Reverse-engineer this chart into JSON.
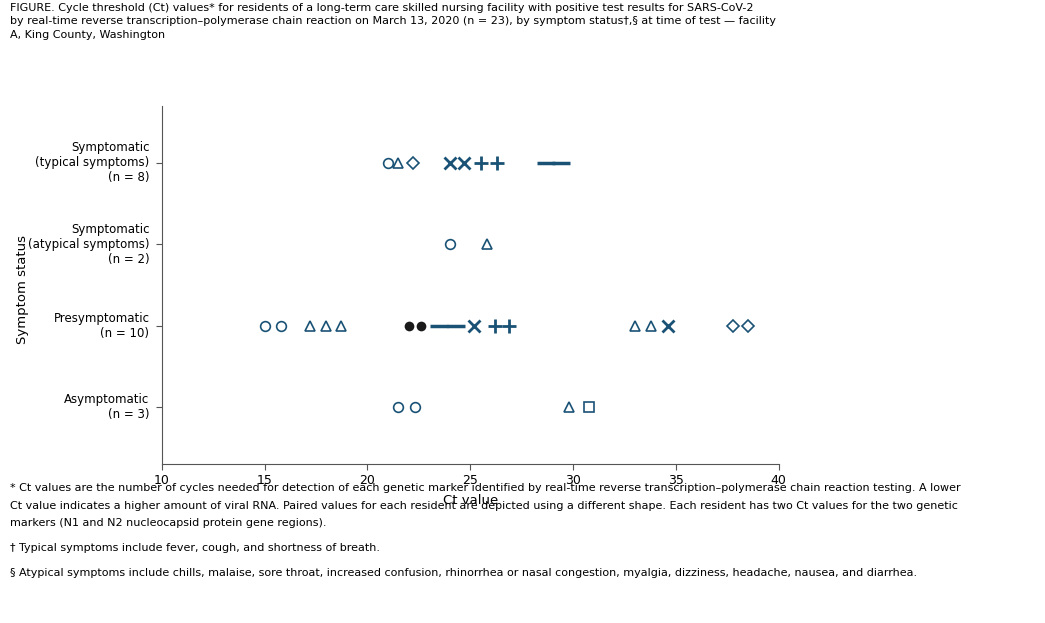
{
  "title_lines": [
    "FIGURE. Cycle threshold (Ct) values* for residents of a long-term care skilled nursing facility with positive test results for SARS-CoV-2",
    "by real-time reverse transcription–polymerase chain reaction on March 13, 2020 (n = 23), by symptom status†,§ at time of test — facility",
    "A, King County, Washington"
  ],
  "xlabel": "Ct value",
  "ylabel": "Symptom status",
  "xlim": [
    10,
    40
  ],
  "ylim": [
    -0.7,
    3.7
  ],
  "ytick_labels": [
    "Asymptomatic\n(n = 3)",
    "Presymptomatic\n(n = 10)",
    "Symptomatic\n(atypical symptoms)\n(n = 2)",
    "Symptomatic\n(typical symptoms)\n(n = 8)"
  ],
  "marker_color": "#1a5276",
  "marker_color_dark": "#1a1a1a",
  "points": [
    {
      "row": 3,
      "x": 21.0,
      "marker": "o",
      "filled": false,
      "ms": 7,
      "mew": 1.2
    },
    {
      "row": 3,
      "x": 21.5,
      "marker": "^",
      "filled": false,
      "ms": 7,
      "mew": 1.2
    },
    {
      "row": 3,
      "x": 22.2,
      "marker": "D",
      "filled": false,
      "ms": 6,
      "mew": 1.2
    },
    {
      "row": 3,
      "x": 24.0,
      "marker": "x",
      "filled": false,
      "ms": 9,
      "mew": 2.0
    },
    {
      "row": 3,
      "x": 24.7,
      "marker": "x",
      "filled": false,
      "ms": 9,
      "mew": 2.0
    },
    {
      "row": 3,
      "x": 25.5,
      "marker": "+",
      "filled": false,
      "ms": 10,
      "mew": 2.0
    },
    {
      "row": 3,
      "x": 26.3,
      "marker": "+",
      "filled": false,
      "ms": 10,
      "mew": 2.0
    },
    {
      "row": 3,
      "x": 28.7,
      "marker": "_",
      "filled": false,
      "ms": 13,
      "mew": 2.5
    },
    {
      "row": 3,
      "x": 29.4,
      "marker": "_",
      "filled": false,
      "ms": 13,
      "mew": 2.5
    },
    {
      "row": 2,
      "x": 24.0,
      "marker": "o",
      "filled": false,
      "ms": 7,
      "mew": 1.2
    },
    {
      "row": 2,
      "x": 25.8,
      "marker": "^",
      "filled": false,
      "ms": 7,
      "mew": 1.2
    },
    {
      "row": 1,
      "x": 15.0,
      "marker": "o",
      "filled": false,
      "ms": 7,
      "mew": 1.2
    },
    {
      "row": 1,
      "x": 15.8,
      "marker": "o",
      "filled": false,
      "ms": 7,
      "mew": 1.2
    },
    {
      "row": 1,
      "x": 17.2,
      "marker": "^",
      "filled": false,
      "ms": 7,
      "mew": 1.2
    },
    {
      "row": 1,
      "x": 18.0,
      "marker": "^",
      "filled": false,
      "ms": 7,
      "mew": 1.2
    },
    {
      "row": 1,
      "x": 18.7,
      "marker": "^",
      "filled": false,
      "ms": 7,
      "mew": 1.2
    },
    {
      "row": 1,
      "x": 22.0,
      "marker": "o",
      "filled": true,
      "ms": 7,
      "mew": 0
    },
    {
      "row": 1,
      "x": 22.6,
      "marker": "o",
      "filled": true,
      "ms": 7,
      "mew": 0
    },
    {
      "row": 1,
      "x": 23.5,
      "marker": "_",
      "filled": false,
      "ms": 13,
      "mew": 2.5
    },
    {
      "row": 1,
      "x": 24.3,
      "marker": "_",
      "filled": false,
      "ms": 13,
      "mew": 2.5
    },
    {
      "row": 1,
      "x": 25.2,
      "marker": "x",
      "filled": false,
      "ms": 9,
      "mew": 2.0
    },
    {
      "row": 1,
      "x": 26.2,
      "marker": "+",
      "filled": false,
      "ms": 10,
      "mew": 2.0
    },
    {
      "row": 1,
      "x": 26.9,
      "marker": "+",
      "filled": false,
      "ms": 10,
      "mew": 2.0
    },
    {
      "row": 1,
      "x": 33.0,
      "marker": "^",
      "filled": false,
      "ms": 7,
      "mew": 1.2
    },
    {
      "row": 1,
      "x": 33.8,
      "marker": "^",
      "filled": false,
      "ms": 7,
      "mew": 1.2
    },
    {
      "row": 1,
      "x": 34.6,
      "marker": "x",
      "filled": false,
      "ms": 9,
      "mew": 2.0
    },
    {
      "row": 1,
      "x": 37.8,
      "marker": "D",
      "filled": false,
      "ms": 6,
      "mew": 1.2
    },
    {
      "row": 1,
      "x": 38.5,
      "marker": "D",
      "filled": false,
      "ms": 6,
      "mew": 1.2
    },
    {
      "row": 0,
      "x": 21.5,
      "marker": "o",
      "filled": false,
      "ms": 7,
      "mew": 1.2
    },
    {
      "row": 0,
      "x": 22.3,
      "marker": "o",
      "filled": false,
      "ms": 7,
      "mew": 1.2
    },
    {
      "row": 0,
      "x": 29.8,
      "marker": "^",
      "filled": false,
      "ms": 7,
      "mew": 1.2
    },
    {
      "row": 0,
      "x": 30.8,
      "marker": "s",
      "filled": false,
      "ms": 7,
      "mew": 1.2
    }
  ],
  "footnote1": "* Ct values are the number of cycles needed for detection of each genetic marker identified by real-time reverse transcription–polymerase chain reaction testing. A lower",
  "footnote2": "Ct value indicates a higher amount of viral RNA. Paired values for each resident are depicted using a different shape. Each resident has two Ct values for the two genetic",
  "footnote3": "markers (N1 and N2 nucleocapsid protein gene regions).",
  "footnote4": "† Typical symptoms include fever, cough, and shortness of breath.",
  "footnote5": "§ Atypical symptoms include chills, malaise, sore throat, increased confusion, rhinorrhea or nasal congestion, myalgia, dizziness, headache, nausea, and diarrhea.",
  "fig_width": 10.45,
  "fig_height": 6.23,
  "bg_color": "#ffffff"
}
